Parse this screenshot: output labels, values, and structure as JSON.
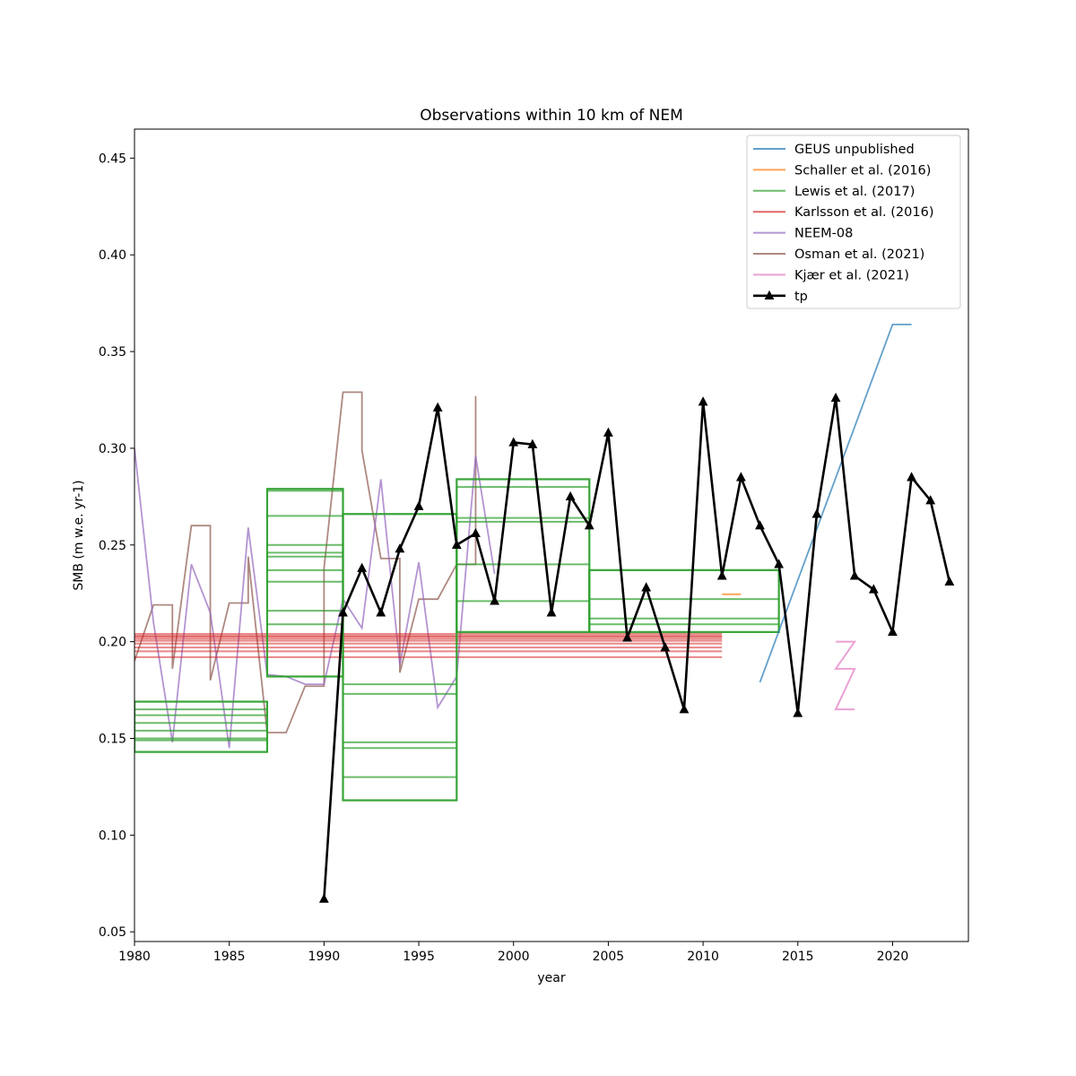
{
  "chart_data": {
    "type": "line",
    "title": "Observations within 10 km of NEM",
    "xlabel": "year",
    "ylabel": "SMB (m w.e. yr-1)",
    "xlim": [
      1980,
      2024
    ],
    "ylim": [
      0.045,
      0.465
    ],
    "xticks": [
      "1980",
      "1985",
      "1990",
      "1995",
      "2000",
      "2005",
      "2010",
      "2015",
      "2020"
    ],
    "yticks": [
      "0.05",
      "0.10",
      "0.15",
      "0.20",
      "0.25",
      "0.30",
      "0.35",
      "0.40",
      "0.45"
    ],
    "grid": false,
    "legend_position": "upper right",
    "series": [
      {
        "name": "GEUS unpublished",
        "color": "#1f77b4",
        "lines": [
          [
            [
              2013,
              0.179
            ],
            [
              2020,
              0.364
            ],
            [
              2021,
              0.364
            ]
          ]
        ]
      },
      {
        "name": "Schaller et al. (2016)",
        "color": "#ff7f0e",
        "lines": [
          [
            [
              2011.0,
              0.2245
            ],
            [
              2012.0,
              0.2245
            ]
          ]
        ]
      },
      {
        "name": "Lewis et al. (2017)",
        "color": "#2ca02c",
        "boxes": [
          {
            "x": [
              1980,
              1987
            ],
            "outline": [
              0.143,
              0.169
            ],
            "levels": [
              0.149,
              0.15,
              0.154,
              0.158,
              0.162,
              0.165
            ]
          },
          {
            "x": [
              1987,
              1991
            ],
            "outline": [
              0.182,
              0.279
            ],
            "levels": [
              0.209,
              0.216,
              0.231,
              0.237,
              0.244,
              0.246,
              0.25,
              0.265,
              0.278
            ]
          },
          {
            "x": [
              1991,
              1997
            ],
            "outline": [
              0.118,
              0.266
            ],
            "levels": [
              0.13,
              0.145,
              0.148,
              0.173,
              0.178
            ]
          },
          {
            "x": [
              1997,
              2004
            ],
            "outline": [
              0.205,
              0.284
            ],
            "levels": [
              0.221,
              0.24,
              0.262,
              0.264,
              0.28
            ]
          },
          {
            "x": [
              2004,
              2014
            ],
            "outline": [
              0.205,
              0.237
            ],
            "levels": [
              0.209,
              0.212,
              0.222
            ]
          }
        ]
      },
      {
        "name": "Karlsson et al. (2016)",
        "color": "#d62728",
        "x": [
          1980,
          2011
        ],
        "levels": [
          0.192,
          0.195,
          0.197,
          0.199,
          0.2005,
          0.2015,
          0.2025,
          0.203,
          0.204
        ]
      },
      {
        "name": "NEEM-08",
        "color": "#9467bd",
        "lines": [
          [
            [
              1980,
              0.3
            ],
            [
              1981,
              0.21
            ],
            [
              1982,
              0.148
            ],
            [
              1983,
              0.24
            ],
            [
              1984,
              0.215
            ],
            [
              1985,
              0.145
            ],
            [
              1986,
              0.259
            ],
            [
              1987,
              0.183
            ],
            [
              1988,
              0.182
            ],
            [
              1989,
              0.178
            ],
            [
              1990,
              0.178
            ],
            [
              1991,
              0.222
            ],
            [
              1992,
              0.207
            ],
            [
              1993,
              0.284
            ],
            [
              1994,
              0.188
            ],
            [
              1995,
              0.241
            ],
            [
              1996,
              0.166
            ],
            [
              1997,
              0.182
            ],
            [
              1998,
              0.296
            ],
            [
              1999,
              0.235
            ]
          ]
        ]
      },
      {
        "name": "Osman et al. (2021)",
        "color": "#8c564b",
        "lines": [
          [
            [
              1980,
              0.19
            ],
            [
              1981,
              0.219
            ],
            [
              1982,
              0.219
            ],
            [
              1982,
              0.186
            ],
            [
              1983,
              0.26
            ],
            [
              1984,
              0.26
            ],
            [
              1984,
              0.18
            ],
            [
              1985,
              0.22
            ],
            [
              1986,
              0.22
            ],
            [
              1986,
              0.244
            ],
            [
              1987,
              0.153
            ],
            [
              1988,
              0.153
            ],
            [
              1989,
              0.177
            ],
            [
              1990,
              0.177
            ],
            [
              1990,
              0.238
            ],
            [
              1991,
              0.329
            ],
            [
              1992,
              0.329
            ],
            [
              1992,
              0.299
            ],
            [
              1993,
              0.243
            ],
            [
              1994,
              0.243
            ],
            [
              1994,
              0.184
            ],
            [
              1995,
              0.222
            ],
            [
              1996,
              0.222
            ],
            [
              1997,
              0.24
            ],
            [
              1998,
              0.24
            ],
            [
              1998,
              0.327
            ]
          ]
        ]
      },
      {
        "name": "Kjær et al. (2021)",
        "color": "#e377c2",
        "lines": [
          [
            [
              2017.0,
              0.2
            ],
            [
              2018.0,
              0.2
            ],
            [
              2017.0,
              0.186
            ],
            [
              2018.0,
              0.186
            ],
            [
              2017.0,
              0.165
            ],
            [
              2018.0,
              0.165
            ]
          ]
        ]
      },
      {
        "name": "tp",
        "color": "#000000",
        "marker": "triangle",
        "x": [
          1990,
          1991,
          1992,
          1993,
          1994,
          1995,
          1996,
          1997,
          1998,
          1999,
          2000,
          2001,
          2002,
          2003,
          2004,
          2005,
          2006,
          2007,
          2008,
          2009,
          2010,
          2011,
          2012,
          2013,
          2014,
          2015,
          2016,
          2017,
          2018,
          2019,
          2020,
          2021,
          2022,
          2023
        ],
        "values": [
          0.067,
          0.215,
          0.238,
          0.215,
          0.248,
          0.27,
          0.321,
          0.25,
          0.256,
          0.221,
          0.303,
          0.302,
          0.215,
          0.275,
          0.26,
          0.308,
          0.202,
          0.228,
          0.197,
          0.165,
          0.324,
          0.234,
          0.285,
          0.26,
          0.24,
          0.163,
          0.266,
          0.326,
          0.234,
          0.227,
          0.205,
          0.285,
          0.273,
          0.231
        ]
      }
    ]
  }
}
